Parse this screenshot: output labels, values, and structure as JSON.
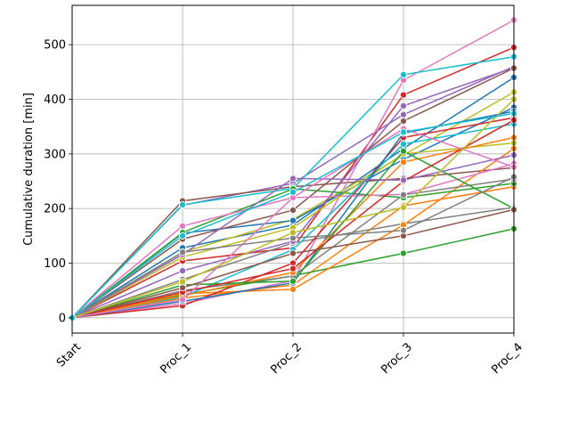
{
  "chart_data": {
    "type": "line",
    "title": "",
    "xlabel": "",
    "ylabel": "Cumulative duration [min]",
    "categories": [
      "Start",
      "Proc_1",
      "Proc_2",
      "Proc_3",
      "Proc_4"
    ],
    "ylim": [
      -28,
      572
    ],
    "yticks": [
      0,
      100,
      200,
      300,
      400,
      500
    ],
    "grid": true,
    "legend": "none",
    "marker": "circle",
    "palette": [
      "#1f77b4",
      "#ff7f0e",
      "#2ca02c",
      "#d62728",
      "#9467bd",
      "#8c564b",
      "#e377c2",
      "#7f7f7f",
      "#bcbd22",
      "#17becf"
    ],
    "series": [
      {
        "values": [
          0,
          128,
          170,
          310,
          440
        ]
      },
      {
        "values": [
          0,
          36,
          60,
          205,
          240
        ]
      },
      {
        "values": [
          0,
          42,
          77,
          118,
          163
        ]
      },
      {
        "values": [
          0,
          104,
          128,
          408,
          495
        ]
      },
      {
        "values": [
          0,
          206,
          246,
          372,
          460
        ]
      },
      {
        "values": [
          0,
          214,
          240,
          255,
          275
        ]
      },
      {
        "values": [
          0,
          26,
          68,
          435,
          545
        ]
      },
      {
        "values": [
          0,
          70,
          137,
          172,
          202
        ]
      },
      {
        "values": [
          0,
          120,
          180,
          298,
          413
        ]
      },
      {
        "values": [
          0,
          207,
          237,
          445,
          478
        ]
      },
      {
        "values": [
          0,
          155,
          178,
          290,
          385
        ]
      },
      {
        "values": [
          0,
          44,
          52,
          170,
          310
        ]
      },
      {
        "values": [
          0,
          156,
          236,
          220,
          246
        ]
      },
      {
        "values": [
          0,
          22,
          100,
          330,
          366
        ]
      },
      {
        "values": [
          0,
          86,
          140,
          388,
          458
        ]
      },
      {
        "values": [
          0,
          144,
          197,
          360,
          457
        ]
      },
      {
        "values": [
          0,
          168,
          220,
          226,
          282
        ]
      },
      {
        "values": [
          0,
          50,
          76,
          225,
          254
        ]
      },
      {
        "values": [
          0,
          111,
          165,
          300,
          320
        ]
      },
      {
        "values": [
          0,
          38,
          125,
          318,
          355
        ]
      },
      {
        "values": [
          0,
          30,
          64,
          338,
          378
        ]
      },
      {
        "values": [
          0,
          40,
          83,
          285,
          330
        ]
      },
      {
        "values": [
          0,
          60,
          67,
          305,
          200
        ]
      },
      {
        "values": [
          0,
          47,
          90,
          250,
          362
        ]
      },
      {
        "values": [
          0,
          116,
          255,
          252,
          298
        ]
      },
      {
        "values": [
          0,
          55,
          118,
          150,
          198
        ]
      },
      {
        "values": [
          0,
          33,
          220,
          346,
          276
        ]
      },
      {
        "values": [
          0,
          120,
          146,
          160,
          258
        ]
      },
      {
        "values": [
          0,
          66,
          156,
          202,
          400
        ]
      },
      {
        "values": [
          0,
          150,
          230,
          340,
          374
        ]
      }
    ]
  }
}
